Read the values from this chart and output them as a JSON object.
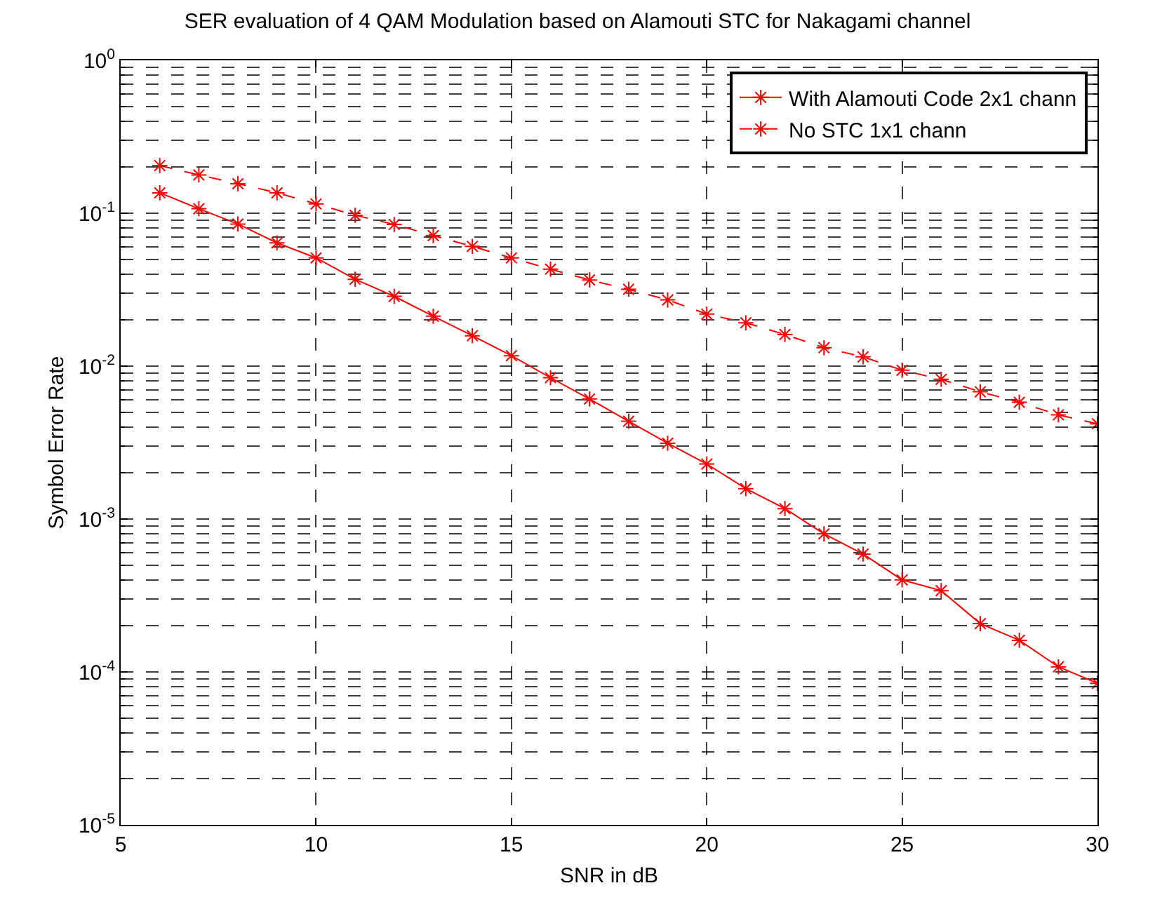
{
  "chart_data": {
    "type": "line",
    "title": "SER evaluation of 4 QAM Modulation based on Alamouti STC for Nakagami channel",
    "xlabel": "SNR in dB",
    "ylabel": "Symbol Error Rate",
    "x": [
      6,
      7,
      8,
      9,
      10,
      11,
      12,
      13,
      14,
      15,
      16,
      17,
      18,
      19,
      20,
      21,
      22,
      23,
      24,
      25,
      26,
      27,
      28,
      29,
      30
    ],
    "series": [
      {
        "name": "With Alamouti Code 2x1 chann",
        "color": "#ff0000",
        "line_style": "solid",
        "values": [
          0.136,
          0.107,
          0.085,
          0.064,
          0.051,
          0.037,
          0.0286,
          0.0212,
          0.0158,
          0.0117,
          0.0084,
          0.0061,
          0.00436,
          0.00313,
          0.00229,
          0.00158,
          0.00117,
          0.0008,
          0.00059,
          0.0004,
          0.00034,
          0.000207,
          0.000161,
          0.000108,
          8.43e-05
        ]
      },
      {
        "name": "No STC 1x1 chann",
        "color": "#ff0000",
        "line_style": "dashed",
        "values": [
          0.205,
          0.178,
          0.156,
          0.136,
          0.115,
          0.097,
          0.0845,
          0.0714,
          0.0607,
          0.051,
          0.0431,
          0.0366,
          0.0318,
          0.0271,
          0.0219,
          0.0192,
          0.0161,
          0.0132,
          0.0115,
          0.0094,
          0.0082,
          0.0068,
          0.0058,
          0.0048,
          0.0042
        ]
      }
    ],
    "xlim": [
      5,
      30
    ],
    "xticks": [
      5,
      10,
      15,
      20,
      25,
      30
    ],
    "ylim": [
      1e-05,
      1
    ],
    "yticks": [
      {
        "value": 1e-05,
        "label": "10$^{-5}$"
      },
      {
        "value": 0.0001,
        "label": "10$^{-4}$"
      },
      {
        "value": 0.001,
        "label": "10$^{-3}$"
      },
      {
        "value": 0.01,
        "label": "10$^{-2}$"
      },
      {
        "value": 0.1,
        "label": "10$^{-1}$"
      },
      {
        "value": 1,
        "label": "10$^{0}$"
      }
    ],
    "log": "y",
    "grid": true,
    "legend": "top right",
    "marker": "cross"
  }
}
